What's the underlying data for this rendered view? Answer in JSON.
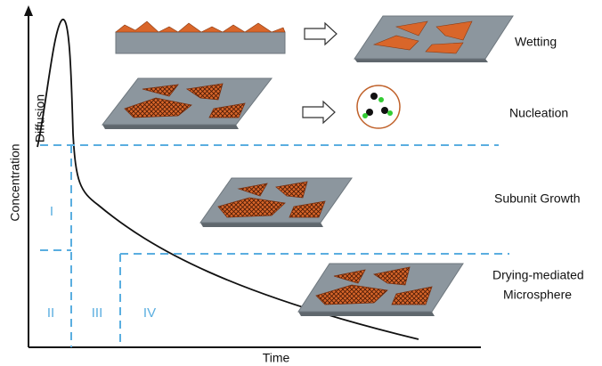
{
  "axes": {
    "y_label": "Concentration",
    "x_label": "Time"
  },
  "curve_label": "Diffusion",
  "stages": {
    "regions": [
      "I",
      "II",
      "III",
      "IV"
    ]
  },
  "steps": [
    {
      "label": "Wetting"
    },
    {
      "label": "Nucleation"
    },
    {
      "label": "Subunit Growth"
    },
    {
      "label_lines": [
        "Drying-mediated",
        "Microsphere"
      ]
    }
  ]
}
